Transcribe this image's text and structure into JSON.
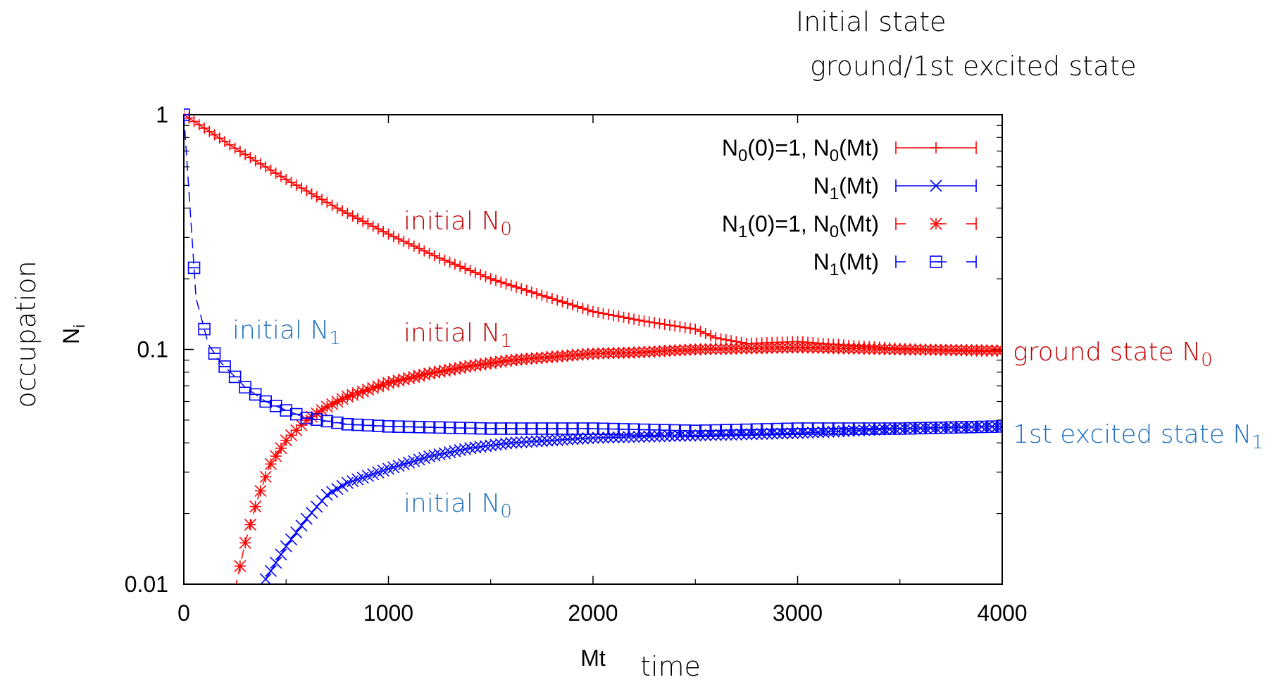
{
  "header": {
    "line1": "Initial state",
    "line2": "ground/1st excited state"
  },
  "axes": {
    "ylabel_line1": "occupation",
    "ylabel_line2": "N",
    "ylabel_sub": "i",
    "xlabel": "Mt",
    "xlabel_extra": "time"
  },
  "legend": [
    {
      "pre": "N",
      "sub": "0",
      "mid": "(0)=1, N",
      "sub2": "0",
      "post": "(Mt)"
    },
    {
      "pre": "N",
      "sub": "1",
      "mid": "(Mt)",
      "sub2": "",
      "post": ""
    },
    {
      "pre": "N",
      "sub": "1",
      "mid": "(0)=1, N",
      "sub2": "0",
      "post": "(Mt)"
    },
    {
      "pre": "N",
      "sub": "1",
      "mid": "(Mt)",
      "sub2": "",
      "post": ""
    }
  ],
  "annotations": [
    {
      "text": "initial N",
      "sub": "0",
      "color": "#c00000"
    },
    {
      "text": "initial N",
      "sub": "1",
      "color": "#c00000"
    },
    {
      "text": "initial N",
      "sub": "1",
      "color": "#1f6fc0"
    },
    {
      "text": "initial N",
      "sub": "0",
      "color": "#1f6fc0"
    },
    {
      "text": "ground state N",
      "sub": "0",
      "color": "#c00000"
    },
    {
      "text": "1st excited state  N",
      "sub": "1",
      "color": "#1f6fc0"
    }
  ],
  "chart_data": {
    "type": "line",
    "xlabel": "Mt",
    "ylabel": "occupation N_i",
    "yscale": "log",
    "xlim": [
      0,
      4000
    ],
    "ylim": [
      0.01,
      1
    ],
    "xticks": [
      "0",
      "1000",
      "2000",
      "3000",
      "4000"
    ],
    "yticks": [
      "0.01",
      "0.1",
      "1"
    ],
    "legend_position": "top-right",
    "grid": false,
    "colors": {
      "red": "#ff0000",
      "blue": "#0000ff"
    },
    "series": [
      {
        "name": "N0(0)=1, N0(Mt)",
        "color": "#ff0000",
        "marker": "plus",
        "line": "solid",
        "x": [
          0,
          250,
          500,
          750,
          1000,
          1250,
          1500,
          1750,
          2000,
          2250,
          2500,
          2600,
          2750,
          3000,
          3250,
          3500,
          3750,
          4000
        ],
        "y": [
          1.0,
          0.72,
          0.53,
          0.4,
          0.31,
          0.245,
          0.2,
          0.17,
          0.145,
          0.132,
          0.122,
          0.112,
          0.106,
          0.108,
          0.104,
          0.101,
          0.099,
          0.098
        ]
      },
      {
        "name": "N1(Mt)",
        "color": "#0000ff",
        "marker": "cross",
        "line": "solid",
        "x": [
          400,
          500,
          600,
          700,
          800,
          1000,
          1200,
          1400,
          1600,
          2000,
          2500,
          3000,
          3500,
          4000
        ],
        "y": [
          0.0105,
          0.0145,
          0.019,
          0.024,
          0.027,
          0.031,
          0.035,
          0.038,
          0.04,
          0.042,
          0.043,
          0.044,
          0.046,
          0.047
        ]
      },
      {
        "name": "N1(0)=1, N0(Mt)",
        "color": "#ff0000",
        "marker": "star",
        "line": "dashed",
        "x": [
          250,
          300,
          360,
          420,
          500,
          600,
          700,
          800,
          1000,
          1200,
          1400,
          1600,
          2000,
          2200,
          2500,
          3000,
          3500,
          4000
        ],
        "y": [
          0.0095,
          0.015,
          0.023,
          0.032,
          0.041,
          0.05,
          0.057,
          0.063,
          0.072,
          0.079,
          0.085,
          0.09,
          0.096,
          0.097,
          0.1,
          0.102,
          0.1,
          0.099
        ]
      },
      {
        "name": "N1(Mt)",
        "color": "#0000ff",
        "marker": "box",
        "line": "dashed",
        "x": [
          0,
          60,
          120,
          180,
          240,
          300,
          400,
          500,
          600,
          800,
          1000,
          1500,
          2000,
          2500,
          3000,
          3500,
          4000
        ],
        "y": [
          1.0,
          0.165,
          0.105,
          0.088,
          0.078,
          0.069,
          0.06,
          0.055,
          0.051,
          0.048,
          0.047,
          0.046,
          0.046,
          0.045,
          0.046,
          0.046,
          0.047
        ]
      }
    ]
  }
}
